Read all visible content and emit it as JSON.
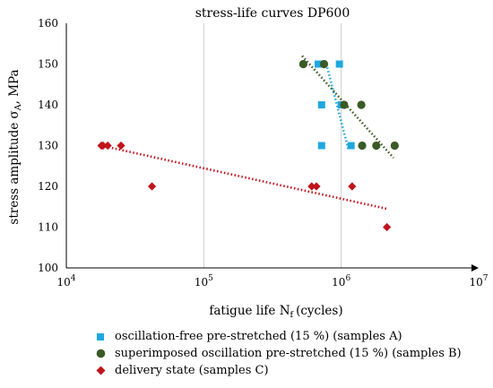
{
  "chart_data": {
    "type": "scatter",
    "title": "stress-life curves DP600",
    "xlabel": "fatigue life N",
    "xlabel_sub": "f",
    "xlabel_unit": "(cycles)",
    "ylabel": "stress amplitude σ",
    "ylabel_sub": "A",
    "ylabel_unit": ", MPa",
    "x_scale": "log",
    "xlim": [
      10000,
      10000000
    ],
    "ylim": [
      100,
      160
    ],
    "x_ticks": [
      {
        "value": 10000,
        "base": "10",
        "exp": "4"
      },
      {
        "value": 100000,
        "base": "10",
        "exp": "5"
      },
      {
        "value": 1000000,
        "base": "10",
        "exp": "6"
      },
      {
        "value": 10000000,
        "base": "10",
        "exp": "7"
      }
    ],
    "y_ticks": [
      "100",
      "110",
      "120",
      "130",
      "140",
      "150",
      "160"
    ],
    "grid": "vertical major lines",
    "legend_position": "below plot",
    "series": [
      {
        "name": "oscillation-free pre-stretched (15 %) (samples A)",
        "color": "#1fa8e0",
        "marker": "square",
        "points": [
          [
            680000,
            150
          ],
          [
            970000,
            150
          ],
          [
            720000,
            140
          ],
          [
            1000000,
            140
          ],
          [
            720000,
            130
          ],
          [
            1180000,
            130
          ]
        ],
        "trend": {
          "style": "dotted",
          "from": [
            780000,
            150
          ],
          "to": [
            1130000,
            129
          ]
        }
      },
      {
        "name": "superimposed oscillation pre-stretched (15 %) (samples B)",
        "color": "#3a5a26",
        "marker": "circle",
        "points": [
          [
            530000,
            150
          ],
          [
            750000,
            150
          ],
          [
            1050000,
            140
          ],
          [
            1400000,
            140
          ],
          [
            1420000,
            130
          ],
          [
            1800000,
            130
          ],
          [
            2450000,
            130
          ]
        ],
        "trend": {
          "style": "dotted",
          "from": [
            520000,
            152
          ],
          "to": [
            2400000,
            127
          ]
        }
      },
      {
        "name": "delivery state (samples C)",
        "color": "#c0141c",
        "marker": "diamond",
        "points": [
          [
            18000,
            130
          ],
          [
            18500,
            130
          ],
          [
            20000,
            130
          ],
          [
            25000,
            130
          ],
          [
            42000,
            120
          ],
          [
            610000,
            120
          ],
          [
            660000,
            120
          ],
          [
            1200000,
            120
          ],
          [
            2150000,
            110
          ]
        ],
        "trend": {
          "style": "dotted",
          "from": [
            18000,
            130
          ],
          "to": [
            2150000,
            114.5
          ]
        }
      }
    ]
  }
}
